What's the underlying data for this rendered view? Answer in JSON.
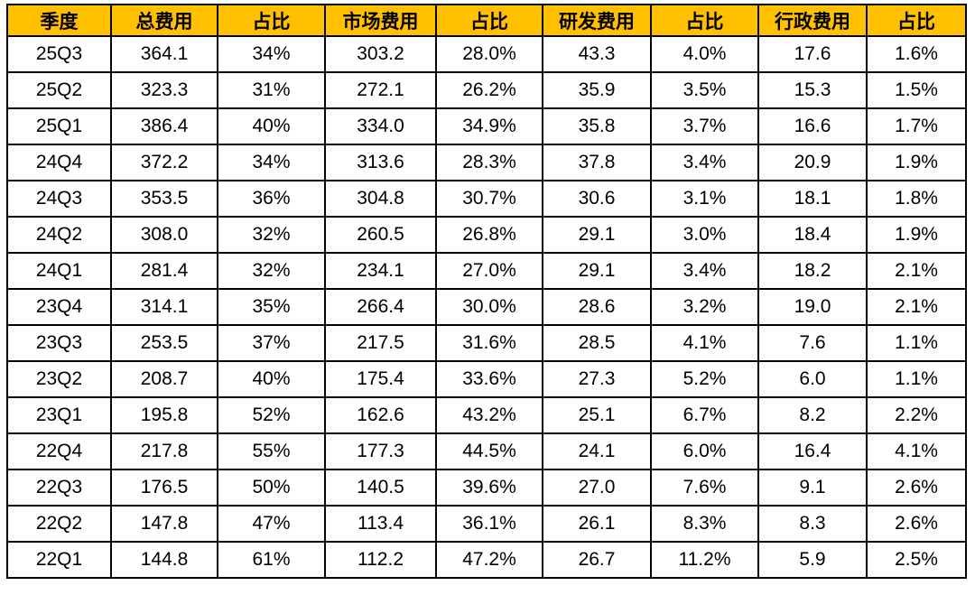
{
  "page": {
    "background_color": "#ffffff",
    "header_bg_color": "#FFC000",
    "border_color": "#000000",
    "text_color": "#000000"
  },
  "chart_data": {
    "type": "table",
    "title": "",
    "columns": [
      "季度",
      "总费用",
      "占比",
      "市场费用",
      "占比",
      "研发费用",
      "占比",
      "行政费用",
      "占比"
    ],
    "rows": [
      [
        "25Q3",
        "364.1",
        "34%",
        "303.2",
        "28.0%",
        "43.3",
        "4.0%",
        "17.6",
        "1.6%"
      ],
      [
        "25Q2",
        "323.3",
        "31%",
        "272.1",
        "26.2%",
        "35.9",
        "3.5%",
        "15.3",
        "1.5%"
      ],
      [
        "25Q1",
        "386.4",
        "40%",
        "334.0",
        "34.9%",
        "35.8",
        "3.7%",
        "16.6",
        "1.7%"
      ],
      [
        "24Q4",
        "372.2",
        "34%",
        "313.6",
        "28.3%",
        "37.8",
        "3.4%",
        "20.9",
        "1.9%"
      ],
      [
        "24Q3",
        "353.5",
        "36%",
        "304.8",
        "30.7%",
        "30.6",
        "3.1%",
        "18.1",
        "1.8%"
      ],
      [
        "24Q2",
        "308.0",
        "32%",
        "260.5",
        "26.8%",
        "29.1",
        "3.0%",
        "18.4",
        "1.9%"
      ],
      [
        "24Q1",
        "281.4",
        "32%",
        "234.1",
        "27.0%",
        "29.1",
        "3.4%",
        "18.2",
        "2.1%"
      ],
      [
        "23Q4",
        "314.1",
        "35%",
        "266.4",
        "30.0%",
        "28.6",
        "3.2%",
        "19.0",
        "2.1%"
      ],
      [
        "23Q3",
        "253.5",
        "37%",
        "217.5",
        "31.6%",
        "28.5",
        "4.1%",
        "7.6",
        "1.1%"
      ],
      [
        "23Q2",
        "208.7",
        "40%",
        "175.4",
        "33.6%",
        "27.3",
        "5.2%",
        "6.0",
        "1.1%"
      ],
      [
        "23Q1",
        "195.8",
        "52%",
        "162.6",
        "43.2%",
        "25.1",
        "6.7%",
        "8.2",
        "2.2%"
      ],
      [
        "22Q4",
        "217.8",
        "55%",
        "177.3",
        "44.5%",
        "24.1",
        "6.0%",
        "16.4",
        "4.1%"
      ],
      [
        "22Q3",
        "176.5",
        "50%",
        "140.5",
        "39.6%",
        "27.0",
        "7.6%",
        "9.1",
        "2.6%"
      ],
      [
        "22Q2",
        "147.8",
        "47%",
        "113.4",
        "36.1%",
        "26.1",
        "8.3%",
        "8.3",
        "2.6%"
      ],
      [
        "22Q1",
        "144.8",
        "61%",
        "112.2",
        "47.2%",
        "26.7",
        "11.2%",
        "5.9",
        "2.5%"
      ]
    ]
  }
}
